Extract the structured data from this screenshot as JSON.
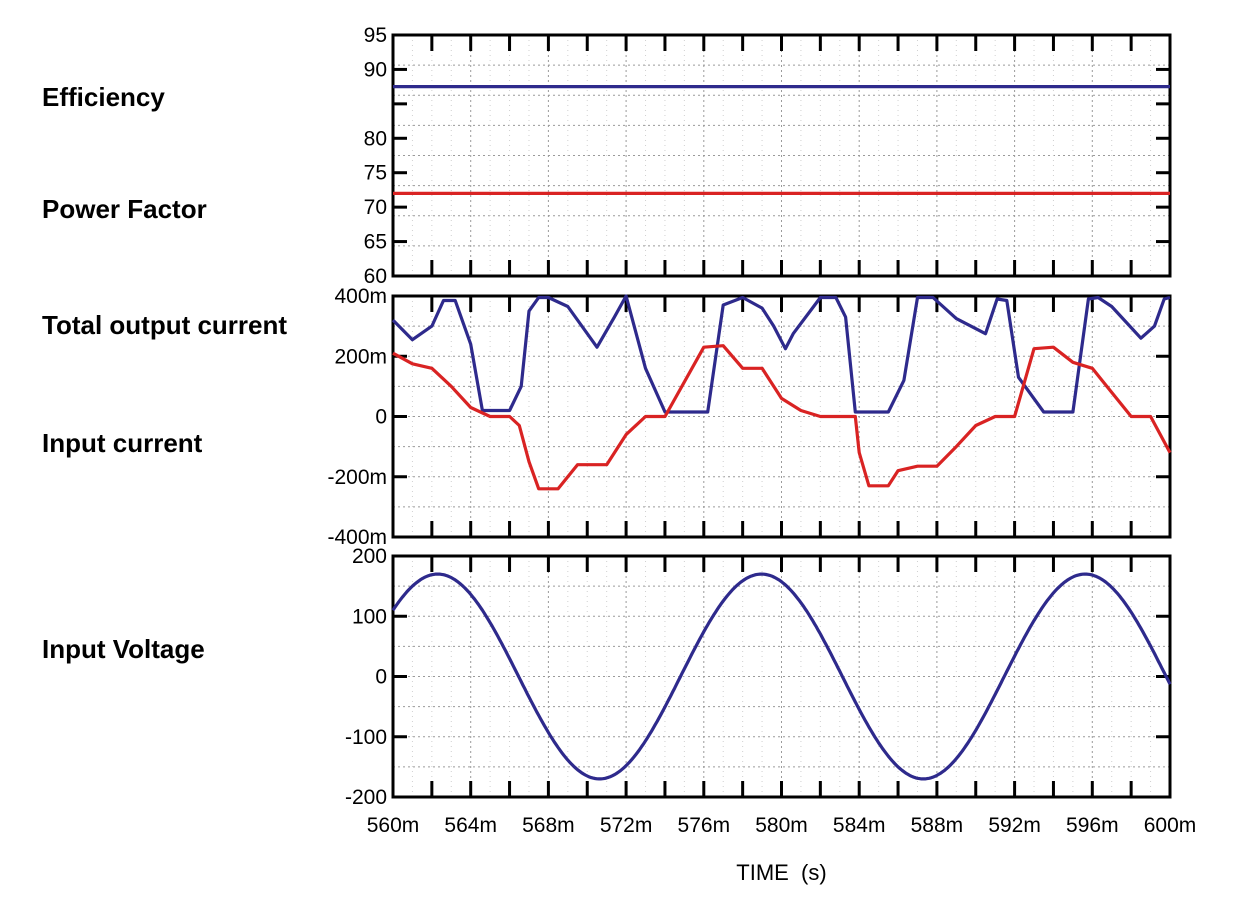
{
  "labels": {
    "efficiency": "Efficiency",
    "power_factor": "Power Factor",
    "total_output_current": "Total output current",
    "input_current": "Input current",
    "input_voltage": "Input Voltage"
  },
  "chart_data": [
    {
      "type": "line",
      "title": "Efficiency / Power Factor",
      "ylim": [
        60,
        95
      ],
      "yticks": [
        95,
        90,
        85,
        80,
        75,
        70,
        65,
        60
      ],
      "ytick_labels": [
        "95",
        "90",
        "",
        "80",
        "75",
        "70",
        "65",
        "60"
      ],
      "xlim": [
        560,
        600
      ],
      "grid": true,
      "series": [
        {
          "name": "Efficiency",
          "color": "#2e2a8c",
          "x": [
            560,
            600
          ],
          "y": [
            87.5,
            87.5
          ]
        },
        {
          "name": "Power Factor",
          "color": "#d92323",
          "x": [
            560,
            600
          ],
          "y": [
            72,
            72
          ]
        }
      ]
    },
    {
      "type": "line",
      "title": "Total output current / Input current",
      "ylim": [
        -400,
        400
      ],
      "yticks": [
        400,
        200,
        0,
        -200,
        -400
      ],
      "ytick_labels": [
        "400m",
        "200m",
        "0",
        "-200m",
        "-400m"
      ],
      "xlim": [
        560,
        600
      ],
      "grid": true,
      "series": [
        {
          "name": "Total output current",
          "color": "#2e2a8c",
          "x": [
            560,
            561,
            562,
            562.6,
            563.2,
            564,
            564.6,
            566,
            566.6,
            567,
            567.5,
            568,
            569,
            570.5,
            571.4,
            572,
            573,
            574,
            575.4,
            576.2,
            577,
            578,
            579,
            579.6,
            580.2,
            580.6,
            582,
            582.8,
            583.3,
            583.8,
            584.5,
            585.5,
            586.3,
            587,
            587.8,
            589,
            590.5,
            591.1,
            591.6,
            592.2,
            593.5,
            594.2,
            595,
            595.8,
            596.3,
            597,
            598.5,
            599.2,
            599.7,
            600
          ],
          "y": [
            320,
            255,
            300,
            385,
            385,
            240,
            20,
            20,
            100,
            350,
            395,
            395,
            365,
            230,
            330,
            400,
            160,
            15,
            15,
            15,
            370,
            395,
            360,
            300,
            225,
            275,
            395,
            395,
            330,
            15,
            15,
            15,
            120,
            395,
            395,
            325,
            275,
            390,
            385,
            130,
            15,
            15,
            15,
            390,
            395,
            365,
            260,
            300,
            390,
            395
          ]
        },
        {
          "name": "Input current",
          "color": "#d92323",
          "x": [
            560,
            561,
            562,
            563,
            564,
            565,
            566,
            566.5,
            567,
            567.5,
            568.5,
            569.5,
            571,
            572,
            573,
            574,
            576,
            577,
            578,
            579,
            580,
            581,
            582,
            583,
            583.8,
            584,
            584.5,
            585.5,
            586,
            587,
            588,
            589,
            590,
            591,
            592,
            593,
            594,
            595,
            596,
            597,
            598,
            599,
            600
          ],
          "y": [
            210,
            175,
            160,
            100,
            30,
            0,
            0,
            -30,
            -150,
            -240,
            -240,
            -160,
            -160,
            -60,
            0,
            0,
            230,
            235,
            160,
            160,
            60,
            20,
            0,
            0,
            0,
            -120,
            -230,
            -230,
            -180,
            -165,
            -165,
            -100,
            -30,
            0,
            0,
            225,
            230,
            180,
            160,
            80,
            0,
            0,
            -120
          ]
        }
      ]
    },
    {
      "type": "line",
      "title": "Input Voltage",
      "ylim": [
        -200,
        200
      ],
      "yticks": [
        200,
        100,
        0,
        -100,
        -200
      ],
      "ytick_labels": [
        "200",
        "100",
        "0",
        "-100",
        "-200"
      ],
      "xlim": [
        560,
        600
      ],
      "xticks": [
        560,
        564,
        568,
        572,
        576,
        580,
        584,
        588,
        592,
        596,
        600
      ],
      "xtick_labels": [
        "560m",
        "564m",
        "568m",
        "572m",
        "576m",
        "580m",
        "584m",
        "588m",
        "592m",
        "596m",
        "600m"
      ],
      "xlabel": "TIME  (s)",
      "grid": true,
      "series": [
        {
          "name": "Input Voltage",
          "color": "#2e2a8c",
          "wave": {
            "amplitude": 170,
            "period": 16.667,
            "peak_at": 562.3
          }
        }
      ]
    }
  ]
}
